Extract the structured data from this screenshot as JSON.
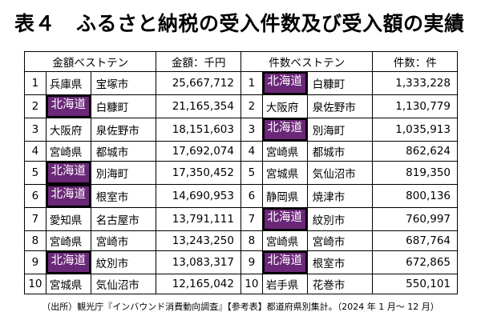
{
  "title": {
    "label": "表４",
    "text": "ふるさと納税の受入件数及び受入額の実績"
  },
  "table": {
    "amount_header": "金額ベストテン",
    "amount_unit_header": "金額：千円",
    "count_header": "件数ベストテン",
    "count_unit_header": "件数：件",
    "highlight_color": "#6b2778",
    "amount_rows": [
      {
        "rank": "1",
        "prefecture": "兵庫県",
        "city": "宝塚市",
        "value": "25,667,712",
        "highlight": false
      },
      {
        "rank": "2",
        "prefecture": "北海道",
        "city": "白糠町",
        "value": "21,165,354",
        "highlight": true
      },
      {
        "rank": "3",
        "prefecture": "大阪府",
        "city": "泉佐野市",
        "value": "18,151,603",
        "highlight": false
      },
      {
        "rank": "4",
        "prefecture": "宮崎県",
        "city": "都城市",
        "value": "17,692,074",
        "highlight": false
      },
      {
        "rank": "5",
        "prefecture": "北海道",
        "city": "別海町",
        "value": "17,350,452",
        "highlight": true
      },
      {
        "rank": "6",
        "prefecture": "北海道",
        "city": "根室市",
        "value": "14,690,953",
        "highlight": true
      },
      {
        "rank": "7",
        "prefecture": "愛知県",
        "city": "名古屋市",
        "value": "13,791,111",
        "highlight": false
      },
      {
        "rank": "8",
        "prefecture": "宮崎県",
        "city": "宮崎市",
        "value": "13,243,250",
        "highlight": false
      },
      {
        "rank": "9",
        "prefecture": "北海道",
        "city": "紋別市",
        "value": "13,083,317",
        "highlight": true
      },
      {
        "rank": "10",
        "prefecture": "宮城県",
        "city": "気仙沼市",
        "value": "12,165,042",
        "highlight": false
      }
    ],
    "count_rows": [
      {
        "rank": "1",
        "prefecture": "北海道",
        "city": "白糠町",
        "value": "1,333,228",
        "highlight": true
      },
      {
        "rank": "2",
        "prefecture": "大阪府",
        "city": "泉佐野市",
        "value": "1,130,779",
        "highlight": false
      },
      {
        "rank": "3",
        "prefecture": "北海道",
        "city": "別海町",
        "value": "1,035,913",
        "highlight": true
      },
      {
        "rank": "4",
        "prefecture": "宮崎県",
        "city": "都城市",
        "value": "862,624",
        "highlight": false
      },
      {
        "rank": "5",
        "prefecture": "宮城県",
        "city": "気仙沼市",
        "value": "819,350",
        "highlight": false
      },
      {
        "rank": "6",
        "prefecture": "静岡県",
        "city": "焼津市",
        "value": "800,136",
        "highlight": false
      },
      {
        "rank": "7",
        "prefecture": "北海道",
        "city": "紋別市",
        "value": "760,997",
        "highlight": true
      },
      {
        "rank": "8",
        "prefecture": "宮崎県",
        "city": "宮崎市",
        "value": "687,764",
        "highlight": false
      },
      {
        "rank": "9",
        "prefecture": "北海道",
        "city": "根室市",
        "value": "672,865",
        "highlight": true
      },
      {
        "rank": "10",
        "prefecture": "岩手県",
        "city": "花巻市",
        "value": "550,101",
        "highlight": false
      }
    ]
  },
  "footnote": "（出所）観光庁『インバウンド消費動向調査』【参考表】都道府県別集計。（2024 年 1 月～ 12 月）"
}
